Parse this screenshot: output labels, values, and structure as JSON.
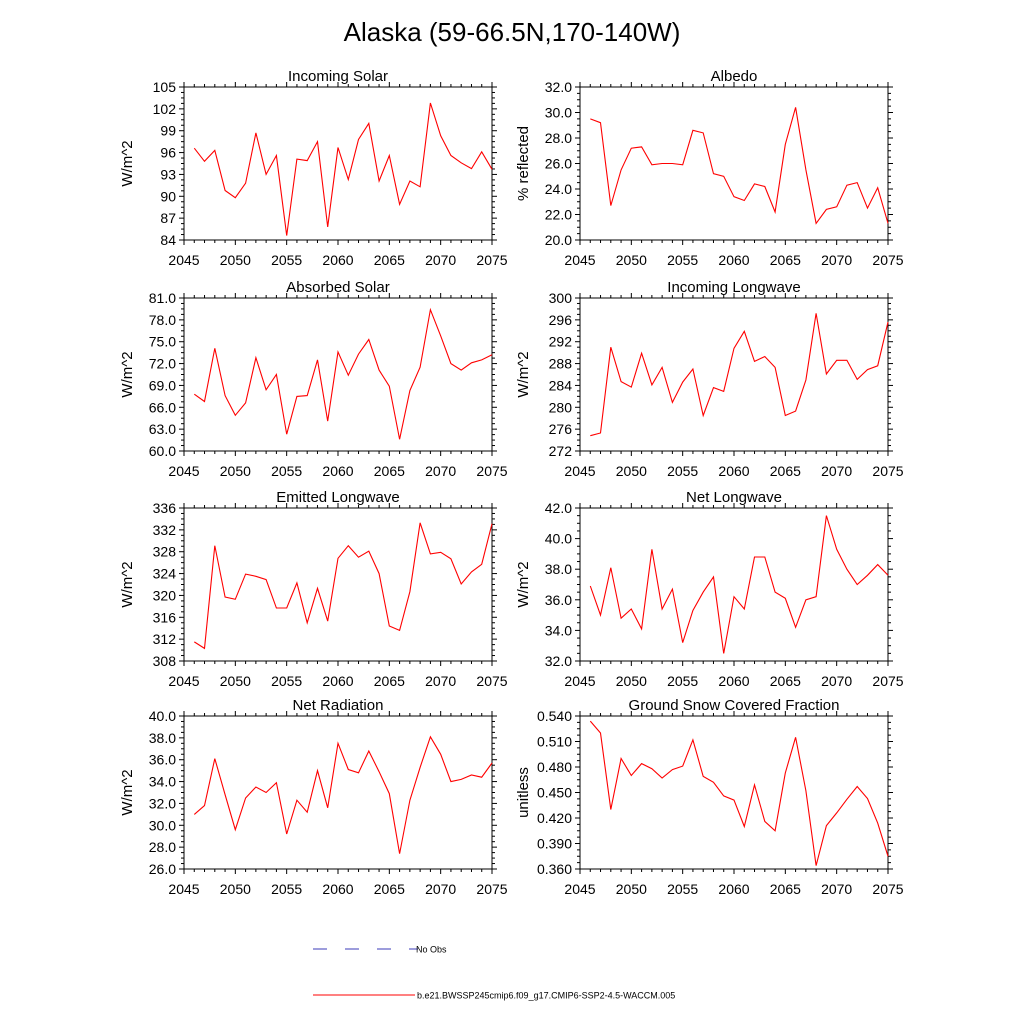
{
  "figure": {
    "title": "Alaska (59-66.5N,170-140W)"
  },
  "colors": {
    "series": "#ff0000",
    "obs": "#3b3bb8",
    "axis": "#000000"
  },
  "legend": {
    "obs_label": "No Obs",
    "model_label": "b.e21.BWSSP245cmip6.f09_g17.CMIP6-SSP2-4.5-WACCM.005"
  },
  "chart_data": [
    {
      "type": "line",
      "title": "Incoming Solar",
      "xlabel": "",
      "ylabel": "W/m^2",
      "xlim": [
        2045,
        2075
      ],
      "ylim": [
        84,
        105
      ],
      "xticks": [
        "2045",
        "2050",
        "2055",
        "2060",
        "2065",
        "2070",
        "2075"
      ],
      "yticks": [
        "84",
        "87",
        "90",
        "93",
        "96",
        "99",
        "102",
        "105"
      ],
      "series": [
        {
          "name": "b.e21.BWSSP245cmip6.f09_g17.CMIP6-SSP2-4.5-WACCM.005",
          "x": [
            2046,
            2047,
            2048,
            2049,
            2050,
            2051,
            2052,
            2053,
            2054,
            2055,
            2056,
            2057,
            2058,
            2059,
            2060,
            2061,
            2062,
            2063,
            2064,
            2065,
            2066,
            2067,
            2068,
            2069,
            2070,
            2071,
            2072,
            2073,
            2074,
            2075
          ],
          "values": [
            96.6,
            94.8,
            96.3,
            90.8,
            89.8,
            91.8,
            98.7,
            93.0,
            95.6,
            84.6,
            95.1,
            94.9,
            97.5,
            85.8,
            96.7,
            92.3,
            97.8,
            100.0,
            92.1,
            95.6,
            88.9,
            92.1,
            91.3,
            102.8,
            98.3,
            95.6,
            94.6,
            93.8,
            96.1,
            93.7
          ]
        }
      ]
    },
    {
      "type": "line",
      "title": "Albedo",
      "xlabel": "",
      "ylabel": "% reflected",
      "xlim": [
        2045,
        2075
      ],
      "ylim": [
        20.0,
        32.0
      ],
      "xticks": [
        "2045",
        "2050",
        "2055",
        "2060",
        "2065",
        "2070",
        "2075"
      ],
      "yticks": [
        "20.0",
        "22.0",
        "24.0",
        "26.0",
        "28.0",
        "30.0",
        "32.0"
      ],
      "series": [
        {
          "name": "b.e21.BWSSP245cmip6.f09_g17.CMIP6-SSP2-4.5-WACCM.005",
          "x": [
            2046,
            2047,
            2048,
            2049,
            2050,
            2051,
            2052,
            2053,
            2054,
            2055,
            2056,
            2057,
            2058,
            2059,
            2060,
            2061,
            2062,
            2063,
            2064,
            2065,
            2066,
            2067,
            2068,
            2069,
            2070,
            2071,
            2072,
            2073,
            2074,
            2075
          ],
          "values": [
            29.5,
            29.2,
            22.7,
            25.5,
            27.2,
            27.3,
            25.9,
            26.0,
            26.0,
            25.9,
            28.6,
            28.4,
            25.2,
            25.0,
            23.4,
            23.1,
            24.4,
            24.2,
            22.2,
            27.5,
            30.4,
            25.5,
            21.3,
            22.4,
            22.6,
            24.3,
            24.5,
            22.5,
            24.1,
            21.3
          ]
        }
      ]
    },
    {
      "type": "line",
      "title": "Absorbed Solar",
      "xlabel": "",
      "ylabel": "W/m^2",
      "xlim": [
        2045,
        2075
      ],
      "ylim": [
        60.0,
        81.0
      ],
      "xticks": [
        "2045",
        "2050",
        "2055",
        "2060",
        "2065",
        "2070",
        "2075"
      ],
      "yticks": [
        "60.0",
        "63.0",
        "66.0",
        "69.0",
        "72.0",
        "75.0",
        "78.0",
        "81.0"
      ],
      "series": [
        {
          "name": "b.e21.BWSSP245cmip6.f09_g17.CMIP6-SSP2-4.5-WACCM.005",
          "x": [
            2046,
            2047,
            2048,
            2049,
            2050,
            2051,
            2052,
            2053,
            2054,
            2055,
            2056,
            2057,
            2058,
            2059,
            2060,
            2061,
            2062,
            2063,
            2064,
            2065,
            2066,
            2067,
            2068,
            2069,
            2070,
            2071,
            2072,
            2073,
            2074,
            2075
          ],
          "values": [
            67.8,
            66.8,
            74.1,
            67.6,
            64.9,
            66.6,
            72.8,
            68.4,
            70.5,
            62.3,
            67.5,
            67.6,
            72.5,
            64.1,
            73.6,
            70.4,
            73.3,
            75.3,
            71.1,
            68.9,
            61.6,
            68.3,
            71.5,
            79.4,
            75.8,
            72.0,
            71.1,
            72.1,
            72.5,
            73.2
          ]
        }
      ]
    },
    {
      "type": "line",
      "title": "Incoming Longwave",
      "xlabel": "",
      "ylabel": "W/m^2",
      "xlim": [
        2045,
        2075
      ],
      "ylim": [
        272,
        300
      ],
      "xticks": [
        "2045",
        "2050",
        "2055",
        "2060",
        "2065",
        "2070",
        "2075"
      ],
      "yticks": [
        "272",
        "276",
        "280",
        "284",
        "288",
        "292",
        "296",
        "300"
      ],
      "series": [
        {
          "name": "b.e21.BWSSP245cmip6.f09_g17.CMIP6-SSP2-4.5-WACCM.005",
          "x": [
            2046,
            2047,
            2048,
            2049,
            2050,
            2051,
            2052,
            2053,
            2054,
            2055,
            2056,
            2057,
            2058,
            2059,
            2060,
            2061,
            2062,
            2063,
            2064,
            2065,
            2066,
            2067,
            2068,
            2069,
            2070,
            2071,
            2072,
            2073,
            2074,
            2075
          ],
          "values": [
            274.8,
            275.3,
            291.0,
            284.7,
            283.7,
            289.9,
            284.1,
            287.3,
            280.9,
            284.6,
            287.0,
            278.5,
            283.6,
            282.9,
            290.8,
            293.9,
            288.4,
            289.3,
            287.3,
            278.5,
            279.3,
            285.0,
            297.2,
            286.1,
            288.6,
            288.6,
            285.1,
            286.9,
            287.6,
            295.6
          ]
        }
      ]
    },
    {
      "type": "line",
      "title": "Emitted Longwave",
      "xlabel": "",
      "ylabel": "W/m^2",
      "xlim": [
        2045,
        2075
      ],
      "ylim": [
        308,
        336
      ],
      "xticks": [
        "2045",
        "2050",
        "2055",
        "2060",
        "2065",
        "2070",
        "2075"
      ],
      "yticks": [
        "308",
        "312",
        "316",
        "320",
        "324",
        "328",
        "332",
        "336"
      ],
      "series": [
        {
          "name": "b.e21.BWSSP245cmip6.f09_g17.CMIP6-SSP2-4.5-WACCM.005",
          "x": [
            2046,
            2047,
            2048,
            2049,
            2050,
            2051,
            2052,
            2053,
            2054,
            2055,
            2056,
            2057,
            2058,
            2059,
            2060,
            2061,
            2062,
            2063,
            2064,
            2065,
            2066,
            2067,
            2068,
            2069,
            2070,
            2071,
            2072,
            2073,
            2074,
            2075
          ],
          "values": [
            311.5,
            310.3,
            329.1,
            319.7,
            319.3,
            323.9,
            323.5,
            322.9,
            317.7,
            317.7,
            322.3,
            315.0,
            321.3,
            315.3,
            326.8,
            329.1,
            327.0,
            328.1,
            324.0,
            314.4,
            313.6,
            320.7,
            333.3,
            327.6,
            327.9,
            326.7,
            322.1,
            324.3,
            325.7,
            333.1
          ]
        }
      ]
    },
    {
      "type": "line",
      "title": "Net Longwave",
      "xlabel": "",
      "ylabel": "W/m^2",
      "xlim": [
        2045,
        2075
      ],
      "ylim": [
        32.0,
        42.0
      ],
      "xticks": [
        "2045",
        "2050",
        "2055",
        "2060",
        "2065",
        "2070",
        "2075"
      ],
      "yticks": [
        "32.0",
        "34.0",
        "36.0",
        "38.0",
        "40.0",
        "42.0"
      ],
      "series": [
        {
          "name": "b.e21.BWSSP245cmip6.f09_g17.CMIP6-SSP2-4.5-WACCM.005",
          "x": [
            2046,
            2047,
            2048,
            2049,
            2050,
            2051,
            2052,
            2053,
            2054,
            2055,
            2056,
            2057,
            2058,
            2059,
            2060,
            2061,
            2062,
            2063,
            2064,
            2065,
            2066,
            2067,
            2068,
            2069,
            2070,
            2071,
            2072,
            2073,
            2074,
            2075
          ],
          "values": [
            36.9,
            35.0,
            38.1,
            34.8,
            35.4,
            34.1,
            39.3,
            35.4,
            36.7,
            33.2,
            35.3,
            36.5,
            37.5,
            32.5,
            36.2,
            35.4,
            38.8,
            38.8,
            36.5,
            36.1,
            34.2,
            36.0,
            36.2,
            41.5,
            39.3,
            38.0,
            37.0,
            37.6,
            38.3,
            37.6
          ]
        }
      ]
    },
    {
      "type": "line",
      "title": "Net Radiation",
      "xlabel": "",
      "ylabel": "W/m^2",
      "xlim": [
        2045,
        2075
      ],
      "ylim": [
        26.0,
        40.0
      ],
      "xticks": [
        "2045",
        "2050",
        "2055",
        "2060",
        "2065",
        "2070",
        "2075"
      ],
      "yticks": [
        "26.0",
        "28.0",
        "30.0",
        "32.0",
        "34.0",
        "36.0",
        "38.0",
        "40.0"
      ],
      "series": [
        {
          "name": "b.e21.BWSSP245cmip6.f09_g17.CMIP6-SSP2-4.5-WACCM.005",
          "x": [
            2046,
            2047,
            2048,
            2049,
            2050,
            2051,
            2052,
            2053,
            2054,
            2055,
            2056,
            2057,
            2058,
            2059,
            2060,
            2061,
            2062,
            2063,
            2064,
            2065,
            2066,
            2067,
            2068,
            2069,
            2070,
            2071,
            2072,
            2073,
            2074,
            2075
          ],
          "values": [
            31.0,
            31.8,
            36.1,
            32.8,
            29.6,
            32.5,
            33.5,
            33.0,
            33.9,
            29.2,
            32.3,
            31.2,
            35.0,
            31.6,
            37.5,
            35.1,
            34.8,
            36.8,
            34.9,
            32.9,
            27.4,
            32.3,
            35.3,
            38.1,
            36.5,
            34.0,
            34.2,
            34.6,
            34.4,
            35.7
          ]
        }
      ]
    },
    {
      "type": "line",
      "title": "Ground Snow Covered Fraction",
      "xlabel": "",
      "ylabel": "unitless",
      "xlim": [
        2045,
        2075
      ],
      "ylim": [
        0.36,
        0.54
      ],
      "xticks": [
        "2045",
        "2050",
        "2055",
        "2060",
        "2065",
        "2070",
        "2075"
      ],
      "yticks": [
        "0.360",
        "0.390",
        "0.420",
        "0.450",
        "0.480",
        "0.510",
        "0.540"
      ],
      "series": [
        {
          "name": "b.e21.BWSSP245cmip6.f09_g17.CMIP6-SSP2-4.5-WACCM.005",
          "x": [
            2046,
            2047,
            2048,
            2049,
            2050,
            2051,
            2052,
            2053,
            2054,
            2055,
            2056,
            2057,
            2058,
            2059,
            2060,
            2061,
            2062,
            2063,
            2064,
            2065,
            2066,
            2067,
            2068,
            2069,
            2070,
            2071,
            2072,
            2073,
            2074,
            2075
          ],
          "values": [
            0.534,
            0.52,
            0.43,
            0.49,
            0.47,
            0.484,
            0.478,
            0.467,
            0.477,
            0.481,
            0.512,
            0.469,
            0.462,
            0.446,
            0.441,
            0.41,
            0.459,
            0.416,
            0.405,
            0.473,
            0.515,
            0.452,
            0.364,
            0.411,
            0.426,
            0.442,
            0.457,
            0.443,
            0.414,
            0.375
          ]
        }
      ]
    }
  ]
}
